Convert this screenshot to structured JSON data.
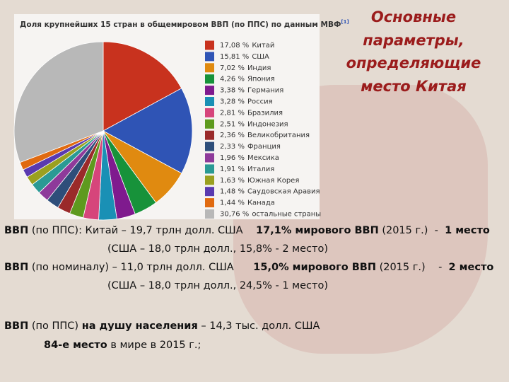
{
  "chart_data": {
    "type": "pie",
    "title": "Доля крупнейших 15 стран в общемировом ВВП (по ППС) по данным МВФ",
    "title_note": "[1]",
    "categories": [
      "Китай",
      "США",
      "Индия",
      "Япония",
      "Германия",
      "Россия",
      "Бразилия",
      "Индонезия",
      "Великобритания",
      "Франция",
      "Мексика",
      "Италия",
      "Южная Корея",
      "Саудовская Аравия",
      "Канада",
      "остальные страны"
    ],
    "values": [
      17.08,
      15.81,
      7.02,
      4.26,
      3.38,
      3.28,
      2.81,
      2.51,
      2.36,
      2.33,
      1.96,
      1.91,
      1.63,
      1.48,
      1.44,
      30.76
    ],
    "value_labels": [
      "17,08 %",
      "15,81 %",
      "7,02 %",
      "4,26 %",
      "3,38 %",
      "3,28 %",
      "2,81 %",
      "2,51 %",
      "2,36 %",
      "2,33 %",
      "1,96 %",
      "1,91 %",
      "1,63 %",
      "1,48 %",
      "1,44 %",
      "30,76 %"
    ],
    "colors": [
      "#c8321e",
      "#2f54b5",
      "#e08a10",
      "#17923a",
      "#7f1a8e",
      "#1a90b5",
      "#d6457b",
      "#5e9a1e",
      "#9a2a2a",
      "#2e4e7a",
      "#8e3a9a",
      "#2a9a94",
      "#9aa020",
      "#5a3ab0",
      "#e06a10",
      "#b8b8b8"
    ]
  },
  "slide_title_lines": [
    "Основные",
    "параметры,",
    "определяющие",
    "место Китая"
  ],
  "text_lines": [
    [
      {
        "text": "ВВП",
        "bold": true
      },
      {
        "text": " (по ППС): Китай – 19,7 трлн долл. США    ",
        "bold": false
      },
      {
        "text": "17,1% мирового ВВП",
        "bold": true
      },
      {
        "text": " (2015 г.)  -  ",
        "bold": false
      },
      {
        "text": "1 место",
        "bold": true
      }
    ],
    [
      {
        "text": "(США – 18,0 трлн долл., 15,8% - 2 место)",
        "bold": false
      }
    ],
    [
      {
        "text": "ВВП",
        "bold": true
      },
      {
        "text": " (по номиналу) – 11,0 трлн долл. США      ",
        "bold": false
      },
      {
        "text": "15,0% мирового ВВП",
        "bold": true
      },
      {
        "text": " (2015 г.)    -  ",
        "bold": false
      },
      {
        "text": "2 место",
        "bold": true
      }
    ],
    [
      {
        "text": "(США – 18,0 трлн долл., 24,5% - 1 место)",
        "bold": false
      }
    ],
    [
      {
        "text": "ВВП",
        "bold": true
      },
      {
        "text": " (по ППС) ",
        "bold": false
      },
      {
        "text": "на душу населения",
        "bold": true
      },
      {
        "text": " – 14,3 тыс. долл. США",
        "bold": false
      }
    ],
    [
      {
        "text": "84-е место",
        "bold": true
      },
      {
        "text": " в мире в 2015 г.;",
        "bold": false
      }
    ]
  ]
}
